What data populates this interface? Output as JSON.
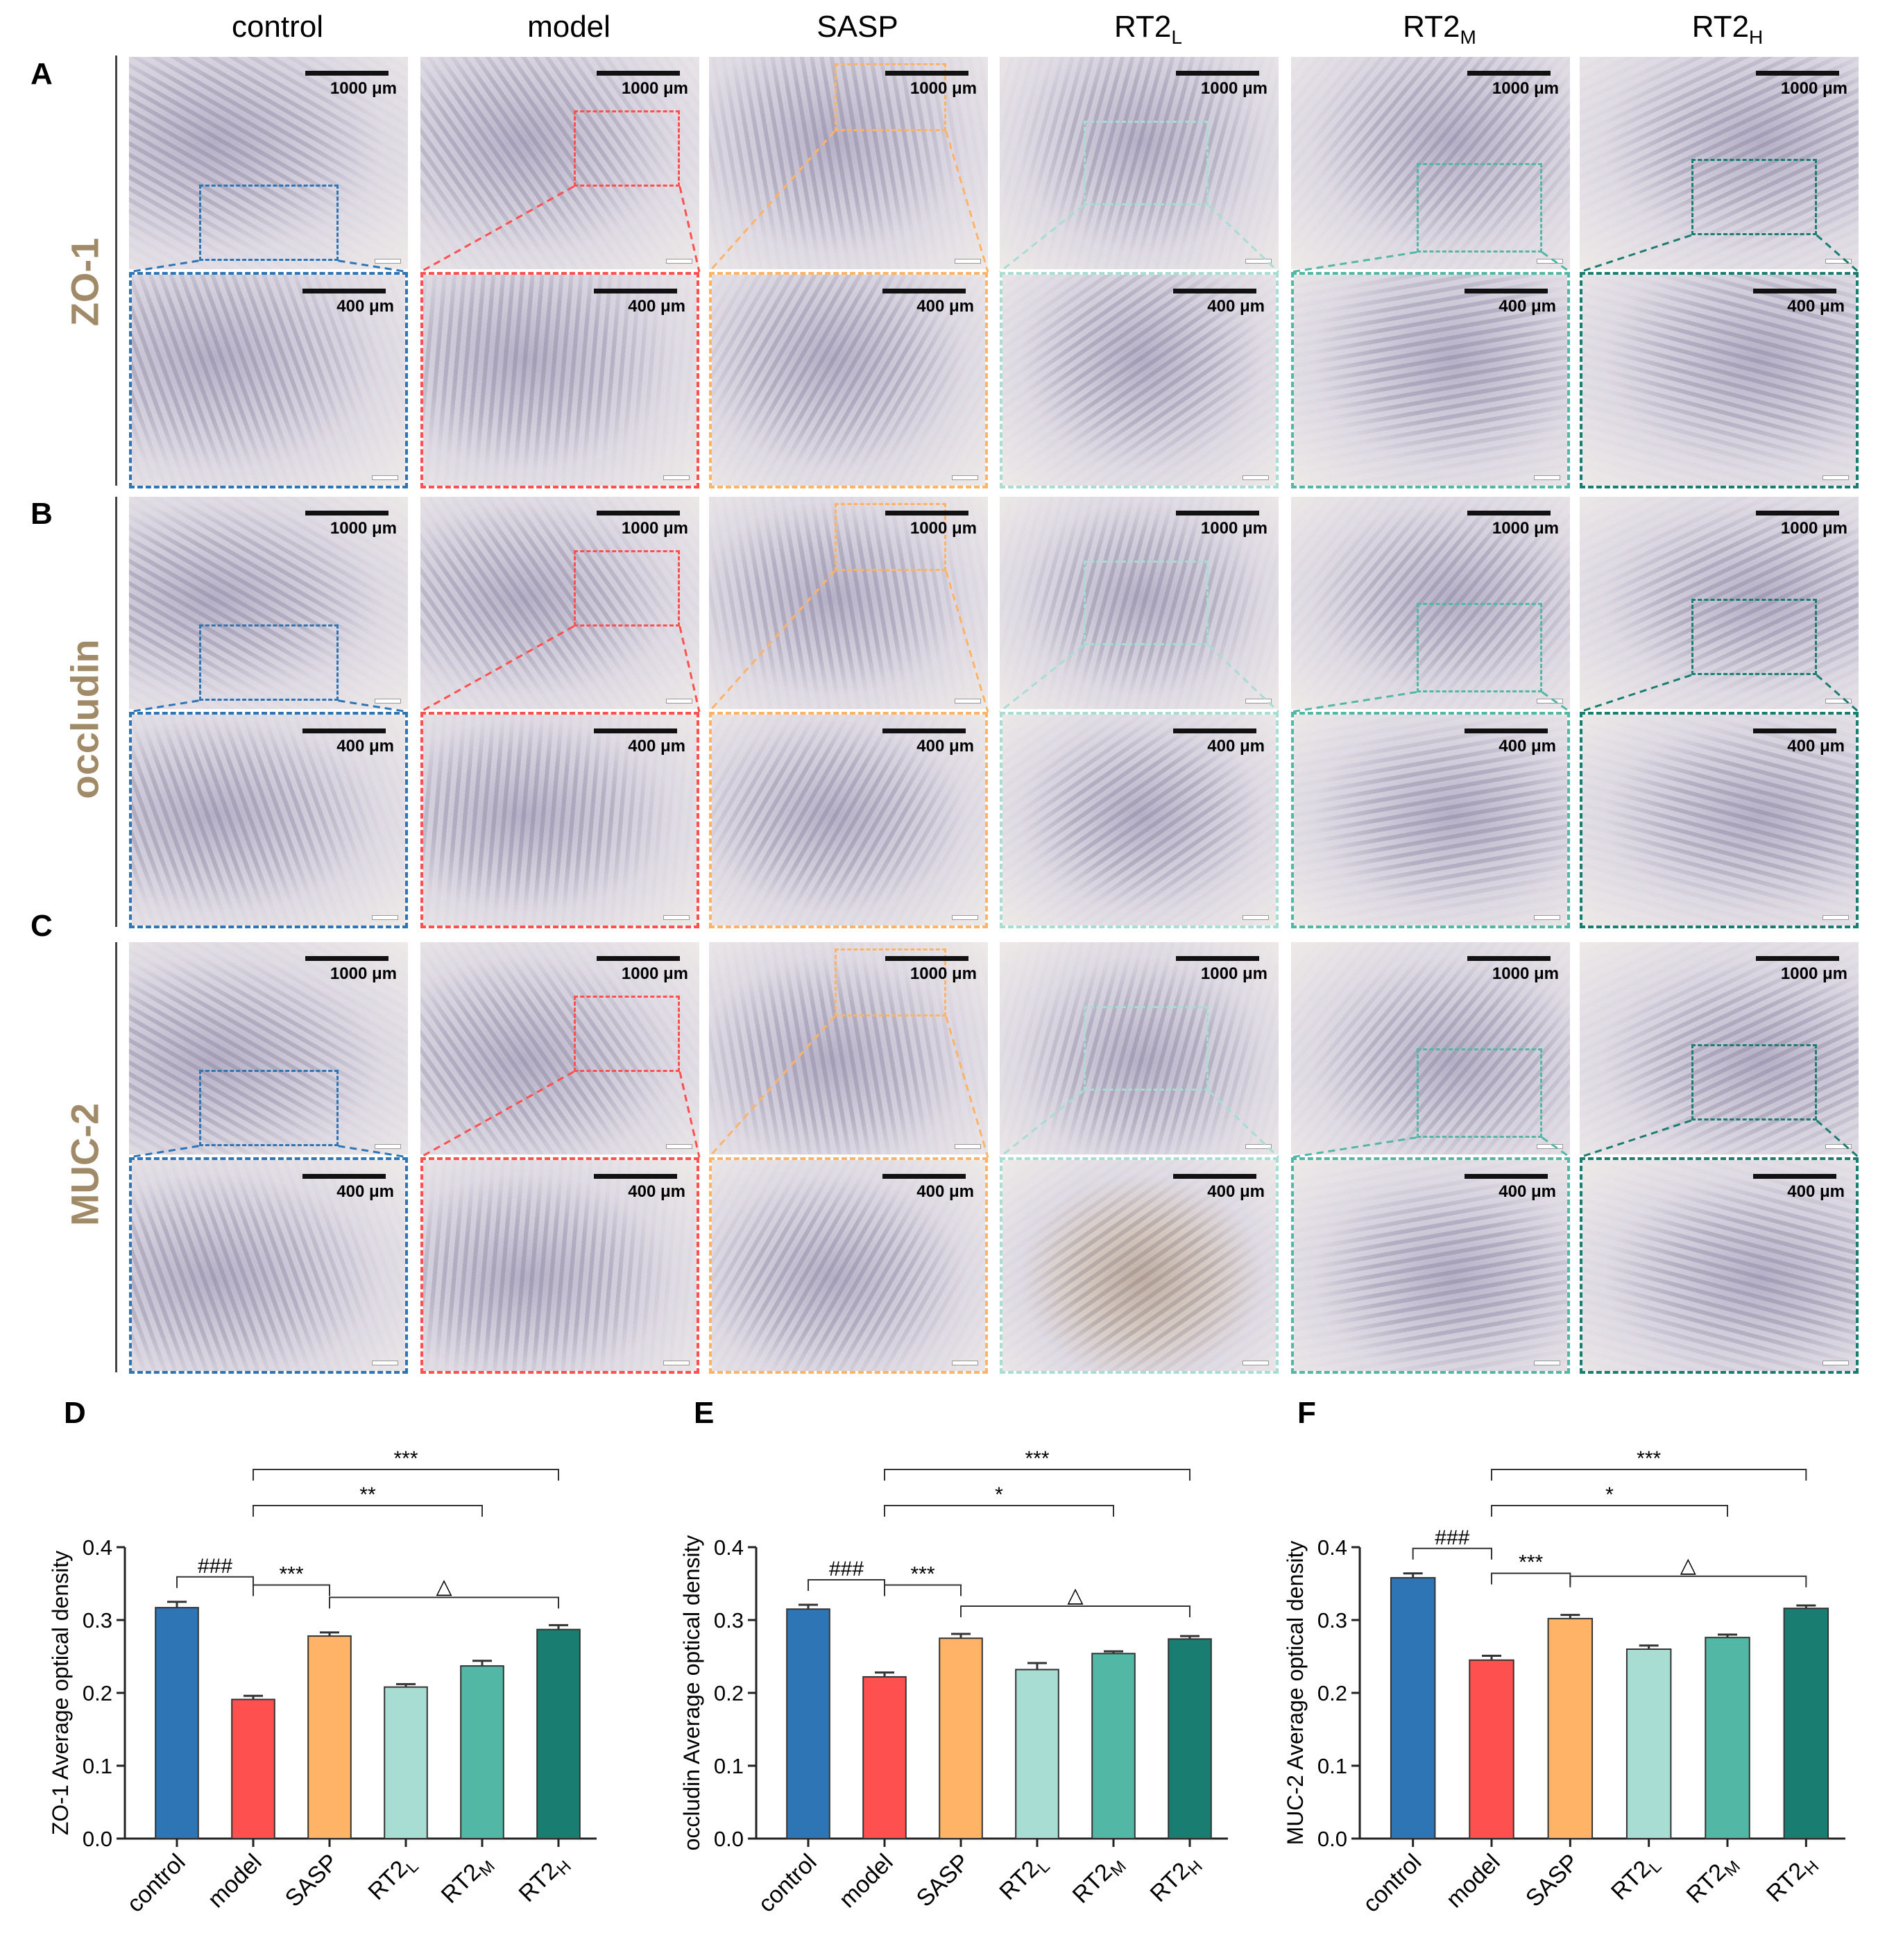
{
  "figure": {
    "groups": [
      {
        "main": "control",
        "sub": ""
      },
      {
        "main": "model",
        "sub": ""
      },
      {
        "main": "SASP",
        "sub": ""
      },
      {
        "main": "RT2",
        "sub": "L"
      },
      {
        "main": "RT2",
        "sub": "M"
      },
      {
        "main": "RT2",
        "sub": "H"
      }
    ],
    "group_colors": [
      "#2e75b6",
      "#ff5050",
      "#ffb366",
      "#a8ddd3",
      "#52b8a5",
      "#1a7d72"
    ],
    "rows": [
      {
        "letter": "A",
        "marker": "ZO-1"
      },
      {
        "letter": "B",
        "marker": "occludin"
      },
      {
        "letter": "C",
        "marker": "MUC-2"
      }
    ],
    "scale_top": "1000 μm",
    "scale_bottom": "400 μm",
    "label_color": "#a08a68"
  },
  "chart_data": [
    {
      "panel": "D",
      "type": "bar",
      "ylabel": "ZO-1 Average optical density",
      "ylim": [
        0,
        0.4
      ],
      "yticks": [
        "0.0",
        "0.1",
        "0.2",
        "0.3",
        "0.4"
      ],
      "categories": [
        {
          "main": "control",
          "sub": ""
        },
        {
          "main": "model",
          "sub": ""
        },
        {
          "main": "SASP",
          "sub": ""
        },
        {
          "main": "RT2",
          "sub": "L"
        },
        {
          "main": "RT2",
          "sub": "M"
        },
        {
          "main": "RT2",
          "sub": "H"
        }
      ],
      "values": [
        0.317,
        0.191,
        0.278,
        0.208,
        0.237,
        0.287
      ],
      "errors": [
        0.008,
        0.005,
        0.005,
        0.004,
        0.007,
        0.006
      ],
      "annotations": [
        {
          "from": 0,
          "to": 1,
          "text": "###"
        },
        {
          "from": 1,
          "to": 2,
          "text": "***"
        },
        {
          "from": 2,
          "to": 5,
          "text": "△"
        },
        {
          "from": 1,
          "to": 4,
          "text": "**"
        },
        {
          "from": 1,
          "to": 5,
          "text": "***"
        }
      ]
    },
    {
      "panel": "E",
      "type": "bar",
      "ylabel": "occludin Average optical density",
      "ylim": [
        0,
        0.4
      ],
      "yticks": [
        "0.0",
        "0.1",
        "0.2",
        "0.3",
        "0.4"
      ],
      "categories": [
        {
          "main": "control",
          "sub": ""
        },
        {
          "main": "model",
          "sub": ""
        },
        {
          "main": "SASP",
          "sub": ""
        },
        {
          "main": "RT2",
          "sub": "L"
        },
        {
          "main": "RT2",
          "sub": "M"
        },
        {
          "main": "RT2",
          "sub": "H"
        }
      ],
      "values": [
        0.315,
        0.222,
        0.275,
        0.232,
        0.254,
        0.274
      ],
      "errors": [
        0.006,
        0.006,
        0.006,
        0.009,
        0.003,
        0.004
      ],
      "annotations": [
        {
          "from": 0,
          "to": 1,
          "text": "###"
        },
        {
          "from": 1,
          "to": 2,
          "text": "***"
        },
        {
          "from": 2,
          "to": 5,
          "text": "△"
        },
        {
          "from": 1,
          "to": 4,
          "text": "*"
        },
        {
          "from": 1,
          "to": 5,
          "text": "***"
        }
      ]
    },
    {
      "panel": "F",
      "type": "bar",
      "ylabel": "MUC-2 Average optical density",
      "ylim": [
        0,
        0.4
      ],
      "yticks": [
        "0.0",
        "0.1",
        "0.2",
        "0.3",
        "0.4"
      ],
      "categories": [
        {
          "main": "control",
          "sub": ""
        },
        {
          "main": "model",
          "sub": ""
        },
        {
          "main": "SASP",
          "sub": ""
        },
        {
          "main": "RT2",
          "sub": "L"
        },
        {
          "main": "RT2",
          "sub": "M"
        },
        {
          "main": "RT2",
          "sub": "H"
        }
      ],
      "values": [
        0.358,
        0.245,
        0.302,
        0.26,
        0.276,
        0.316
      ],
      "errors": [
        0.006,
        0.006,
        0.005,
        0.005,
        0.004,
        0.004
      ],
      "annotations": [
        {
          "from": 0,
          "to": 1,
          "text": "###"
        },
        {
          "from": 1,
          "to": 2,
          "text": "***"
        },
        {
          "from": 2,
          "to": 5,
          "text": "△"
        },
        {
          "from": 1,
          "to": 4,
          "text": "*"
        },
        {
          "from": 1,
          "to": 5,
          "text": "***"
        }
      ]
    }
  ]
}
